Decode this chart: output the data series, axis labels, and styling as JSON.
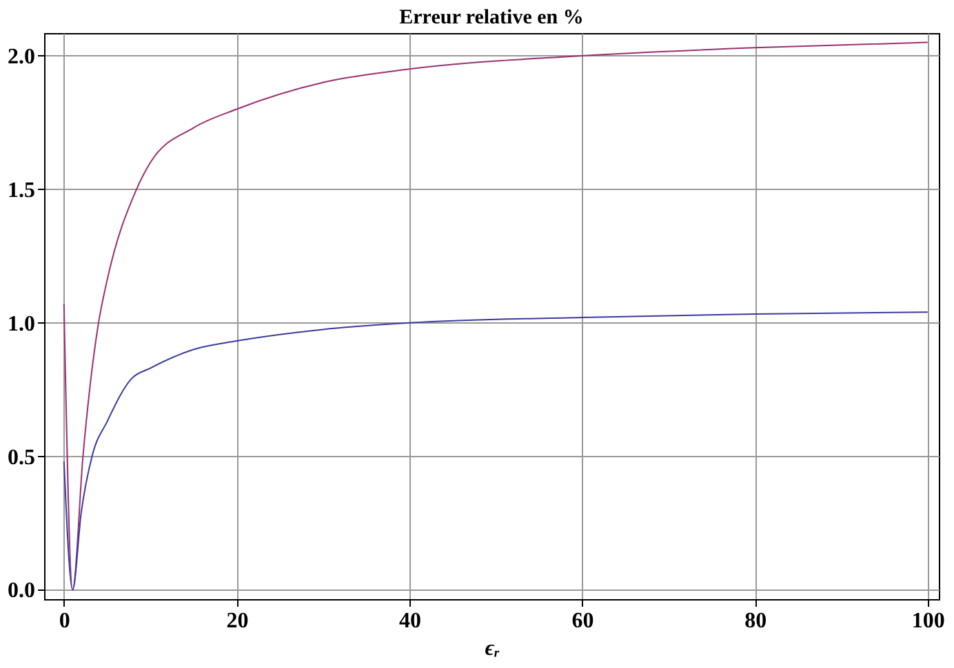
{
  "chart_data": {
    "type": "line",
    "title": "Erreur relative en %",
    "xlabel": "ϵᵣ",
    "xlim": [
      -2.3,
      101.3
    ],
    "ylim": [
      -0.035,
      2.085
    ],
    "xticks": [
      0,
      20,
      40,
      60,
      80,
      100
    ],
    "yticks": [
      {
        "value": 0,
        "label": "0.0"
      },
      {
        "value": 0.5,
        "label": "0.5"
      },
      {
        "value": 1,
        "label": "1.0"
      },
      {
        "value": 1.5,
        "label": "1.5"
      },
      {
        "value": 2,
        "label": "2.0"
      }
    ],
    "grid": true,
    "legend": false,
    "line_style": "solid",
    "marker": "none",
    "series": [
      {
        "color": "#9b2f6e",
        "x": [
          0,
          1,
          2.2,
          4,
          5,
          8.4,
          10,
          15,
          20,
          30,
          40,
          60,
          80,
          100
        ],
        "values": [
          1.07,
          0,
          0.5,
          1.0,
          1.16,
          1.5,
          1.6,
          1.73,
          1.8,
          1.9,
          1.95,
          2.0,
          2.03,
          2.05
        ]
      },
      {
        "color": "#3a3aa0",
        "x": [
          0,
          1,
          2,
          3.25,
          5,
          7.8,
          10,
          15,
          20,
          30,
          40,
          60,
          80,
          100
        ],
        "values": [
          0.48,
          0,
          0.29,
          0.5,
          0.63,
          0.79,
          0.83,
          0.9,
          0.932,
          0.975,
          1.0,
          1.02,
          1.033,
          1.04
        ]
      }
    ]
  }
}
